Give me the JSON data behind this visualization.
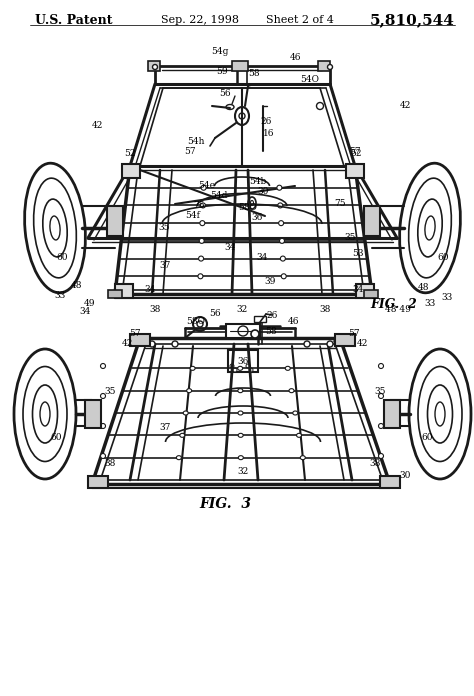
{
  "title_left": "U.S. Patent",
  "title_center": "Sep. 22, 1998",
  "title_sheet": "Sheet 2 of 4",
  "title_right": "5,810,544",
  "fig2_label": "FIG.  2",
  "fig3_label": "FIG.  3",
  "bg_color": "#ffffff",
  "line_color": "#1a1a1a",
  "text_color": "#000000",
  "fig_width": 4.74,
  "fig_height": 6.96,
  "dpi": 100
}
